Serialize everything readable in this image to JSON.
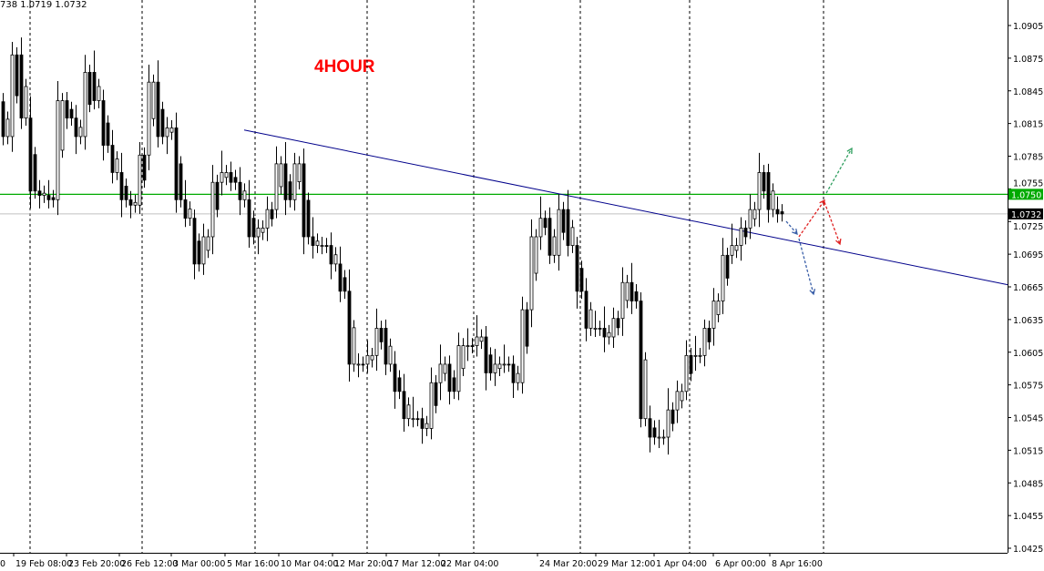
{
  "header": {
    "ohlc_text": "738 1.0719 1.0732"
  },
  "annotation": {
    "timeframe_label": "4HOUR"
  },
  "colors": {
    "trendline": "#00008b",
    "support_line": "#00aa00",
    "current_price_line": "#c0c0c0",
    "arrow_green": "#2e9e5e",
    "arrow_red": "#e02020",
    "arrow_blue": "#3a5fa8",
    "title_red": "#ff0000"
  },
  "chart_data": {
    "type": "candlestick",
    "title": "",
    "ylim": [
      1.0415,
      1.093
    ],
    "y_ticks": [
      "1.0905",
      "1.0875",
      "1.0845",
      "1.0815",
      "1.0785",
      "1.0755",
      "1.0725",
      "1.0695",
      "1.0665",
      "1.0635",
      "1.0605",
      "1.0575",
      "1.0545",
      "1.0515",
      "1.0485",
      "1.0455",
      "1.0425"
    ],
    "x_ticks": [
      "0",
      "19 Feb 08:00",
      "23 Feb 20:00",
      "26 Feb 12:00",
      "3 Mar 00:00",
      "5 Mar 16:00",
      "10 Mar 04:00",
      "12 Mar 20:00",
      "17 Mar 12:00",
      "22 Mar 04:00",
      "24 Mar 20:00",
      "29 Mar 12:00",
      "1 Apr 04:00",
      "6 Apr 00:00",
      "8 Apr 16:00"
    ],
    "closes": [
      1.0803,
      1.0878,
      1.082,
      1.0753,
      1.0749,
      1.0745,
      1.0836,
      1.082,
      1.0803,
      1.0862,
      1.0836,
      1.0795,
      1.077,
      1.0745,
      1.074,
      1.0786,
      1.0853,
      1.0803,
      1.0811,
      1.0745,
      1.0728,
      1.0686,
      1.0711,
      1.0761,
      1.077,
      1.0761,
      1.0745,
      1.0711,
      1.0719,
      1.0736,
      1.0778,
      1.0745,
      1.0778,
      1.0711,
      1.0703,
      1.0703,
      1.0686,
      1.0661,
      1.0594,
      1.0594,
      1.0602,
      1.0627,
      1.0594,
      1.0569,
      1.0544,
      1.0544,
      1.0535,
      1.0577,
      1.0594,
      1.0569,
      1.0611,
      1.0611,
      1.0619,
      1.0586,
      1.0594,
      1.0594,
      1.0577,
      1.0644,
      1.0711,
      1.0728,
      1.0694,
      1.0736,
      1.0703,
      1.0661,
      1.0627,
      1.0627,
      1.0619,
      1.0636,
      1.0669,
      1.0652,
      1.0544,
      1.0527,
      1.0527,
      1.0552,
      1.0569,
      1.0602,
      1.0602,
      1.0627,
      1.0652,
      1.0694,
      1.0703,
      1.0719,
      1.0736,
      1.077,
      1.0736,
      1.0732
    ],
    "horizontal_lines": [
      {
        "price": 1.075,
        "label": "1.0750",
        "color": "#00aa00"
      },
      {
        "price": 1.0732,
        "label": "1.0732",
        "color": "#000000"
      }
    ],
    "trendline": {
      "start_price": 1.0809,
      "end_price": 1.0667
    },
    "grid": false
  }
}
